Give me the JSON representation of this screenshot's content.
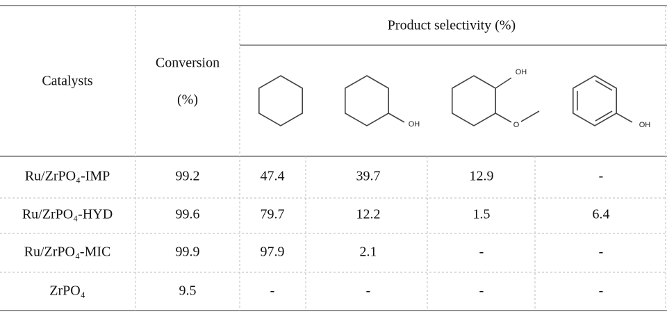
{
  "header": {
    "catalysts": "Catalysts",
    "conversion": [
      "Conversion",
      "(%)"
    ],
    "selectivity": "Product selectivity (%)",
    "structure_labels": [
      "OH",
      "OH",
      "O",
      "OH"
    ]
  },
  "table": {
    "rows": [
      [
        "Ru/ZrPO₄-IMP",
        99.2,
        47.4,
        39.7,
        12.9,
        "-"
      ],
      [
        "Ru/ZrPO₄-HYD",
        99.6,
        79.7,
        12.2,
        1.5,
        6.4
      ],
      [
        "Ru/ZrPO₄-MIC",
        99.9,
        97.9,
        2.1,
        "-",
        "-"
      ],
      [
        "ZrPO₄",
        9.5,
        "-",
        "-",
        "-",
        "-"
      ]
    ]
  }
}
